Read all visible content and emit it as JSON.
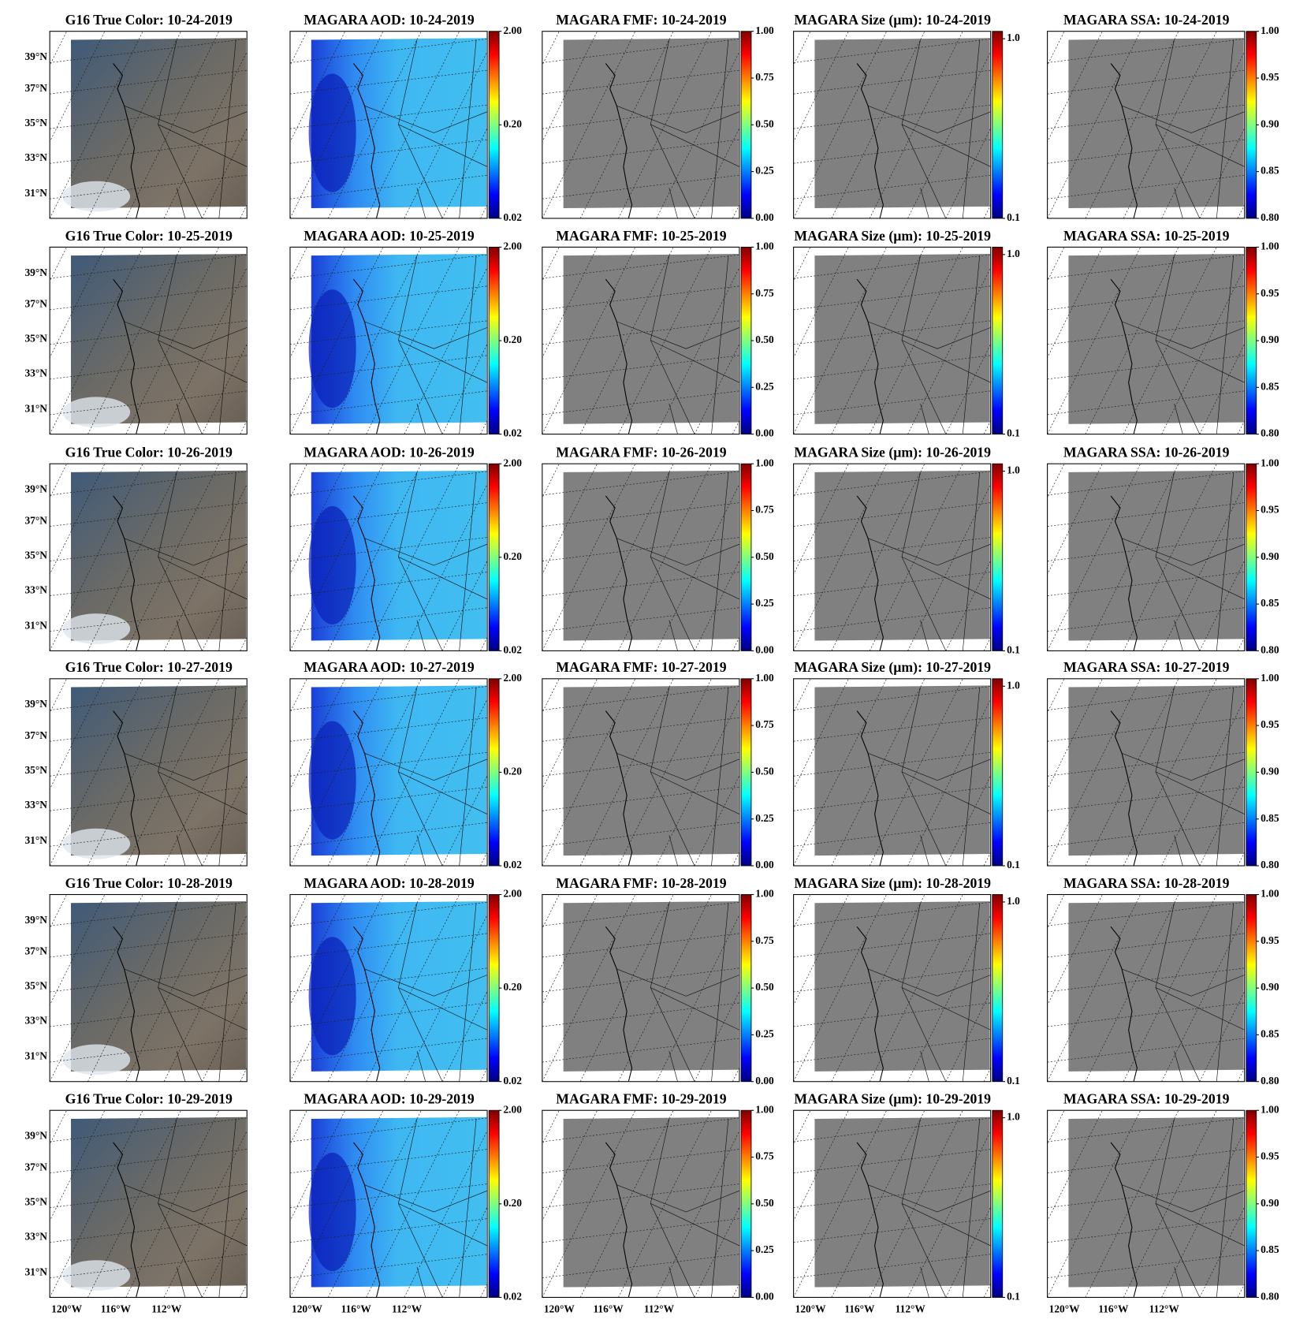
{
  "colormap": [
    "#00007f",
    "#0000ff",
    "#007fff",
    "#00ffff",
    "#7fff7f",
    "#ffff00",
    "#ff7f00",
    "#ff0000",
    "#7f0000"
  ],
  "latitude_labels": [
    "39°N",
    "37°N",
    "35°N",
    "33°N",
    "31°N"
  ],
  "longitude_labels": [
    "120°W",
    "116°W",
    "112°W"
  ],
  "rows": [
    {
      "titles": [
        "G16 True Color: 10-24-2019",
        "MAGARA AOD: 10-24-2019",
        "MAGARA FMF: 10-24-2019",
        "MAGARA Size (µm): 10-24-2019",
        "MAGARA SSA: 10-24-2019"
      ]
    },
    {
      "titles": [
        "G16 True Color: 10-25-2019",
        "MAGARA AOD: 10-25-2019",
        "MAGARA FMF: 10-25-2019",
        "MAGARA Size (µm): 10-25-2019",
        "MAGARA SSA: 10-25-2019"
      ]
    },
    {
      "titles": [
        "G16 True Color: 10-26-2019",
        "MAGARA AOD: 10-26-2019",
        "MAGARA FMF: 10-26-2019",
        "MAGARA Size (µm): 10-26-2019",
        "MAGARA SSA: 10-26-2019"
      ]
    },
    {
      "titles": [
        "G16 True Color: 10-27-2019",
        "MAGARA AOD: 10-27-2019",
        "MAGARA FMF: 10-27-2019",
        "MAGARA Size (µm): 10-27-2019",
        "MAGARA SSA: 10-27-2019"
      ]
    },
    {
      "titles": [
        "G16 True Color: 10-28-2019",
        "MAGARA AOD: 10-28-2019",
        "MAGARA FMF: 10-28-2019",
        "MAGARA Size (µm): 10-28-2019",
        "MAGARA SSA: 10-28-2019"
      ]
    },
    {
      "titles": [
        "G16 True Color: 10-29-2019",
        "MAGARA AOD: 10-29-2019",
        "MAGARA FMF: 10-29-2019",
        "MAGARA Size (µm): 10-29-2019",
        "MAGARA SSA: 10-29-2019"
      ]
    }
  ],
  "colorbars": [
    {
      "lim": [
        0.02,
        2
      ],
      "log": true,
      "ticks": [
        {
          "value": 2,
          "label": "2.00"
        },
        {
          "value": 0.2,
          "label": "0.20"
        },
        {
          "value": 0.02,
          "label": "0.02"
        }
      ]
    },
    {
      "lim": [
        0,
        1
      ],
      "log": false,
      "ticks": [
        {
          "value": 1,
          "label": "1.00"
        },
        {
          "value": 0.75,
          "label": "0.75"
        },
        {
          "value": 0.5,
          "label": "0.50"
        },
        {
          "value": 0.25,
          "label": "0.25"
        },
        {
          "value": 0,
          "label": "0.00"
        }
      ]
    },
    {
      "lim": [
        0.1,
        1.1
      ],
      "log": true,
      "ticks": [
        {
          "value": 1,
          "label": "1.0"
        },
        {
          "value": 0.1,
          "label": "0.1"
        }
      ]
    },
    {
      "lim": [
        0.8,
        1
      ],
      "log": false,
      "ticks": [
        {
          "value": 1,
          "label": "1.00"
        },
        {
          "value": 0.95,
          "label": "0.95"
        },
        {
          "value": 0.9,
          "label": "0.90"
        },
        {
          "value": 0.85,
          "label": "0.85"
        },
        {
          "value": 0.8,
          "label": "0.80"
        }
      ]
    }
  ]
}
